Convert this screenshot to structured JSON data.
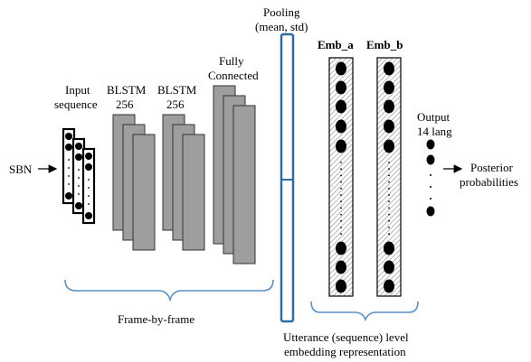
{
  "labels": {
    "sbn": "SBN",
    "input_line1": "Input",
    "input_line2": "sequence",
    "blstm1_line1": "BLSTM",
    "blstm1_line2": "256",
    "blstm2_line1": "BLSTM",
    "blstm2_line2": "256",
    "fc_line1": "Fully",
    "fc_line2": "Connected",
    "pooling_line1": "Pooling",
    "pooling_line2": "(mean, std)",
    "emb_a": "Emb_a",
    "emb_b": "Emb_b",
    "output_line1": "Output",
    "output_line2": "14 lang",
    "posterior_line1": "Posterior",
    "posterior_line2": "probabilities",
    "frame_by_frame": "Frame-by-frame",
    "utterance_line1": "Utterance (sequence) level",
    "utterance_line2": "embedding representation"
  },
  "colors": {
    "layer_fill": "#9e9e9e",
    "pooling_stroke": "#2e6da4",
    "brace_stroke": "#5b8fc7",
    "node_fill": "#000000"
  }
}
